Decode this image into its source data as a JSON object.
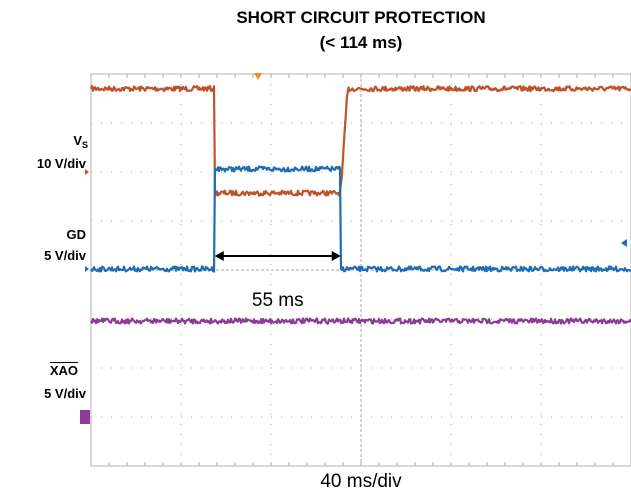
{
  "chart_data": {
    "type": "line",
    "title": "SHORT CIRCUIT PROTECTION",
    "subtitle": "(< 114 ms)",
    "xlabel": "40 ms/div",
    "grid": true,
    "x_divisions": 6,
    "y_divisions": 8,
    "channels": [
      {
        "name_main": "V",
        "name_sub": "S",
        "scale": "10 V/div",
        "color": "#c0522a",
        "unit": "V",
        "x_ms": [
          0,
          55,
          55.1,
          111,
          114,
          240
        ],
        "y_v": [
          17,
          17,
          -4.3,
          -4.3,
          17,
          17
        ]
      },
      {
        "name_main": "GD",
        "name_sub": "",
        "scale": "5 V/div",
        "color": "#1f6db5",
        "unit": "V",
        "x_ms": [
          0,
          55,
          55.1,
          111,
          111.1,
          240
        ],
        "y_v": [
          0,
          0,
          10.2,
          10.2,
          0,
          0
        ]
      },
      {
        "name_main": "XAO",
        "name_sub": "",
        "scale": "5 V/div",
        "color": "#8b3c96",
        "unit": "V",
        "x_ms": [
          0,
          240
        ],
        "y_v": [
          10,
          10
        ]
      }
    ],
    "annotations": [
      {
        "text": "55 ms",
        "from_ms": 55,
        "to_ms": 111
      }
    ]
  }
}
